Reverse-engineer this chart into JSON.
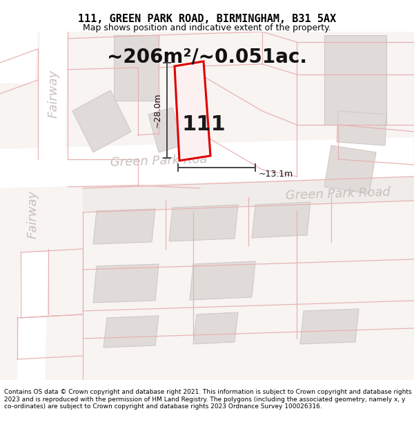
{
  "title_line1": "111, GREEN PARK ROAD, BIRMINGHAM, B31 5AX",
  "title_line2": "Map shows position and indicative extent of the property.",
  "footer": "Contains OS data © Crown copyright and database right 2021. This information is subject to Crown copyright and database rights 2023 and is reproduced with the permission of HM Land Registry. The polygons (including the associated geometry, namely x, y co-ordinates) are subject to Crown copyright and database rights 2023 Ordnance Survey 100026316.",
  "area_label": "~206m²/~0.051ac.",
  "width_label": "~13.1m",
  "height_label": "~28.0m",
  "number_label": "111",
  "map_bg": "#f7f4f2",
  "road_color": "#ffffff",
  "building_fill": "#e0dbd8",
  "building_edge": "#d0cac7",
  "pink_line": "#e8b0b0",
  "highlight_fill": "#fdf0f0",
  "highlight_edge": "#dd0000",
  "dim_line_color": "#444444",
  "road_label_color": "#c8c0bc",
  "title_fontsize": 11,
  "subtitle_fontsize": 9,
  "area_fontsize": 20,
  "number_fontsize": 22,
  "dim_fontsize": 9,
  "road_fontsize": 13,
  "footer_fontsize": 6.5
}
